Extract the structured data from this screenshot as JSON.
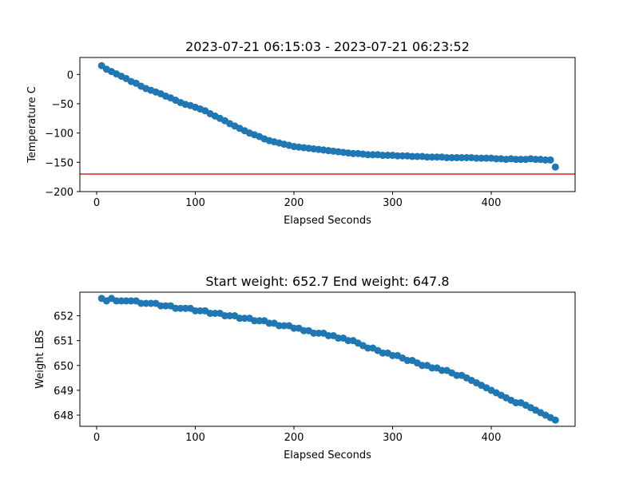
{
  "chart_data": [
    {
      "type": "scatter",
      "title": "2023-07-21 06:15:03 - 2023-07-21 06:23:52",
      "xlabel": "Elapsed Seconds",
      "ylabel": "Temperature C",
      "xlim": [
        -17,
        485
      ],
      "ylim": [
        -200,
        29
      ],
      "xticks": [
        0,
        100,
        200,
        300,
        400
      ],
      "yticks": [
        0,
        -50,
        -100,
        -150,
        -200
      ],
      "marker_color": "#1f77b4",
      "hline": {
        "y": -170,
        "color": "#d62728"
      },
      "grid": false,
      "x": [
        5,
        10,
        15,
        20,
        25,
        30,
        35,
        40,
        45,
        50,
        55,
        60,
        65,
        70,
        75,
        80,
        85,
        90,
        95,
        100,
        105,
        110,
        115,
        120,
        125,
        130,
        135,
        140,
        145,
        150,
        155,
        160,
        165,
        170,
        175,
        180,
        185,
        190,
        195,
        200,
        205,
        210,
        215,
        220,
        225,
        230,
        235,
        240,
        245,
        250,
        255,
        260,
        265,
        270,
        275,
        280,
        285,
        290,
        295,
        300,
        305,
        310,
        315,
        320,
        325,
        330,
        335,
        340,
        345,
        350,
        355,
        360,
        365,
        370,
        375,
        380,
        385,
        390,
        395,
        400,
        405,
        410,
        415,
        420,
        425,
        430,
        435,
        440,
        445,
        450,
        455,
        460,
        465
      ],
      "y": [
        15,
        9,
        5,
        1,
        -3,
        -7,
        -12,
        -15,
        -20,
        -24,
        -27,
        -30,
        -33,
        -37,
        -40,
        -44,
        -48,
        -51,
        -53,
        -56,
        -59,
        -62,
        -67,
        -71,
        -75,
        -79,
        -84,
        -88,
        -92,
        -96,
        -100,
        -103,
        -106,
        -110,
        -113,
        -115,
        -117,
        -119,
        -121,
        -123,
        -124,
        -125,
        -126,
        -127,
        -128,
        -129,
        -130,
        -131,
        -132,
        -133,
        -134,
        -135,
        -135,
        -136,
        -137,
        -137,
        -137,
        -138,
        -138,
        -138,
        -139,
        -139,
        -139,
        -140,
        -140,
        -140,
        -141,
        -141,
        -141,
        -141,
        -142,
        -142,
        -142,
        -142,
        -142,
        -142,
        -143,
        -143,
        -143,
        -143,
        -144,
        -144,
        -145,
        -144,
        -145,
        -145,
        -145,
        -144,
        -145,
        -145,
        -146,
        -146,
        -158
      ]
    },
    {
      "type": "scatter",
      "title": "Start weight: 652.7 End weight: 647.8",
      "xlabel": "Elapsed Seconds",
      "ylabel": "Weight LBS",
      "xlim": [
        -17,
        485
      ],
      "ylim": [
        647.55,
        652.95
      ],
      "xticks": [
        0,
        100,
        200,
        300,
        400
      ],
      "yticks": [
        648,
        649,
        650,
        651,
        652
      ],
      "marker_color": "#1f77b4",
      "grid": false,
      "x": [
        5,
        10,
        15,
        20,
        25,
        30,
        35,
        40,
        45,
        50,
        55,
        60,
        65,
        70,
        75,
        80,
        85,
        90,
        95,
        100,
        105,
        110,
        115,
        120,
        125,
        130,
        135,
        140,
        145,
        150,
        155,
        160,
        165,
        170,
        175,
        180,
        185,
        190,
        195,
        200,
        205,
        210,
        215,
        220,
        225,
        230,
        235,
        240,
        245,
        250,
        255,
        260,
        265,
        270,
        275,
        280,
        285,
        290,
        295,
        300,
        305,
        310,
        315,
        320,
        325,
        330,
        335,
        340,
        345,
        350,
        355,
        360,
        365,
        370,
        375,
        380,
        385,
        390,
        395,
        400,
        405,
        410,
        415,
        420,
        425,
        430,
        435,
        440,
        445,
        450,
        455,
        460,
        465
      ],
      "y": [
        652.7,
        652.6,
        652.7,
        652.6,
        652.6,
        652.6,
        652.6,
        652.6,
        652.5,
        652.5,
        652.5,
        652.5,
        652.4,
        652.4,
        652.4,
        652.3,
        652.3,
        652.3,
        652.3,
        652.2,
        652.2,
        652.2,
        652.1,
        652.1,
        652.1,
        652.0,
        652.0,
        652.0,
        651.9,
        651.9,
        651.9,
        651.8,
        651.8,
        651.8,
        651.7,
        651.7,
        651.6,
        651.6,
        651.6,
        651.5,
        651.5,
        651.4,
        651.4,
        651.3,
        651.3,
        651.3,
        651.2,
        651.2,
        651.1,
        651.1,
        651.0,
        651.0,
        650.9,
        650.8,
        650.7,
        650.7,
        650.6,
        650.5,
        650.5,
        650.4,
        650.4,
        650.3,
        650.2,
        650.2,
        650.1,
        650.0,
        650.0,
        649.9,
        649.9,
        649.8,
        649.8,
        649.7,
        649.6,
        649.6,
        649.5,
        649.4,
        649.3,
        649.2,
        649.1,
        649.0,
        648.9,
        648.8,
        648.7,
        648.6,
        648.5,
        648.5,
        648.4,
        648.3,
        648.2,
        648.1,
        648.0,
        647.9,
        647.8
      ]
    }
  ]
}
